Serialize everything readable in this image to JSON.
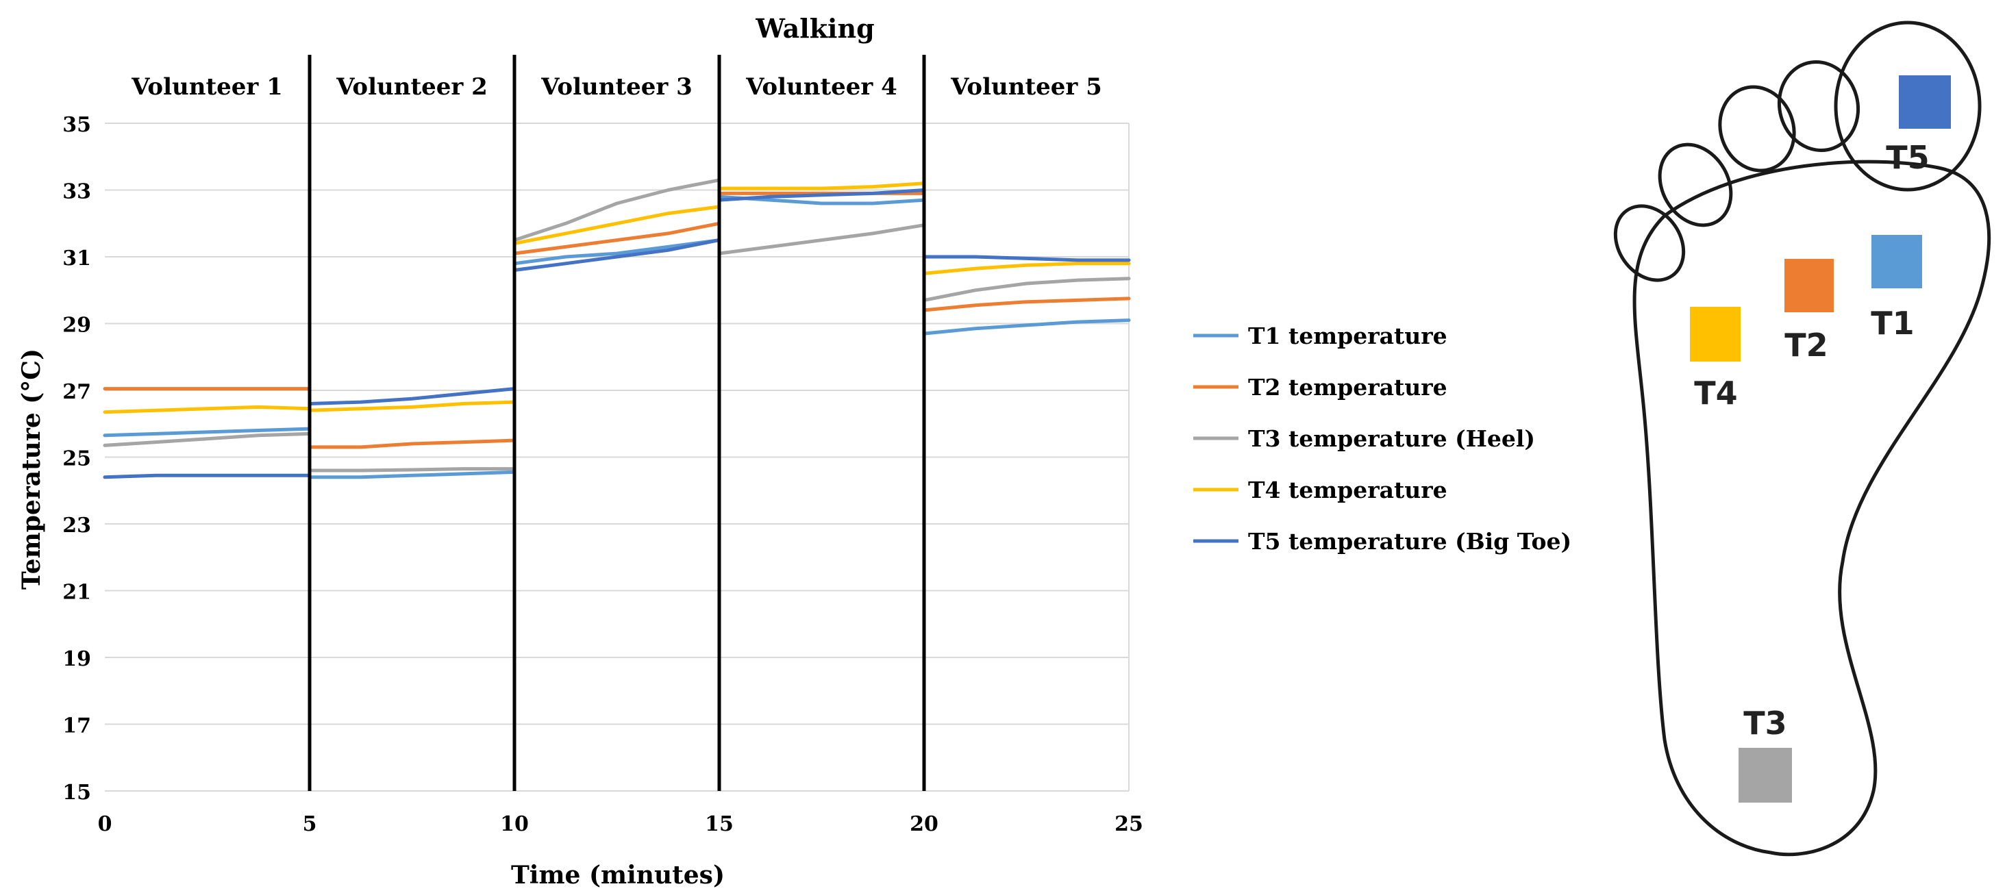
{
  "chart_data": {
    "type": "line",
    "title": "Walking",
    "xlabel": "Time (minutes)",
    "ylabel": "Temperature (°C)",
    "xlim": [
      0,
      25
    ],
    "ylim": [
      15,
      35
    ],
    "x_ticks": [
      "0",
      "5",
      "10",
      "15",
      "20",
      "25"
    ],
    "y_ticks": [
      "15",
      "17",
      "19",
      "21",
      "23",
      "25",
      "27",
      "29",
      "31",
      "33",
      "35"
    ],
    "grid": "horizontal",
    "legend_position": "right",
    "segments": [
      {
        "label": "Volunteer 1",
        "x_start": 0,
        "x_end": 5
      },
      {
        "label": "Volunteer 2",
        "x_start": 5,
        "x_end": 10
      },
      {
        "label": "Volunteer 3",
        "x_start": 10,
        "x_end": 15
      },
      {
        "label": "Volunteer 4",
        "x_start": 15,
        "x_end": 20
      },
      {
        "label": "Volunteer 5",
        "x_start": 20,
        "x_end": 25
      }
    ],
    "separators_x": [
      5,
      10,
      15,
      20
    ],
    "series": [
      {
        "name": "T1 temperature",
        "color": "#5B9BD5",
        "segments": [
          {
            "x": [
              0,
              1.25,
              2.5,
              3.75,
              5
            ],
            "y": [
              25.65,
              25.7,
              25.75,
              25.8,
              25.85
            ]
          },
          {
            "x": [
              5,
              6.25,
              7.5,
              8.75,
              10
            ],
            "y": [
              24.4,
              24.4,
              24.45,
              24.5,
              24.55
            ]
          },
          {
            "x": [
              10,
              11.25,
              12.5,
              13.75,
              15
            ],
            "y": [
              30.8,
              31.0,
              31.1,
              31.3,
              31.5
            ]
          },
          {
            "x": [
              15,
              16.25,
              17.5,
              18.75,
              20
            ],
            "y": [
              32.8,
              32.7,
              32.6,
              32.6,
              32.7
            ]
          },
          {
            "x": [
              20,
              21.25,
              22.5,
              23.75,
              25
            ],
            "y": [
              28.7,
              28.85,
              28.95,
              29.05,
              29.1
            ]
          }
        ]
      },
      {
        "name": "T2 temperature",
        "color": "#ED7D31",
        "segments": [
          {
            "x": [
              0,
              1.25,
              2.5,
              3.75,
              5
            ],
            "y": [
              27.05,
              27.05,
              27.05,
              27.05,
              27.05
            ]
          },
          {
            "x": [
              5,
              6.25,
              7.5,
              8.75,
              10
            ],
            "y": [
              25.3,
              25.3,
              25.4,
              25.45,
              25.5
            ]
          },
          {
            "x": [
              10,
              11.25,
              12.5,
              13.75,
              15
            ],
            "y": [
              31.1,
              31.3,
              31.5,
              31.7,
              32.0
            ]
          },
          {
            "x": [
              15,
              16.25,
              17.5,
              18.75,
              20
            ],
            "y": [
              32.9,
              32.9,
              32.9,
              32.9,
              32.9
            ]
          },
          {
            "x": [
              20,
              21.25,
              22.5,
              23.75,
              25
            ],
            "y": [
              29.4,
              29.55,
              29.65,
              29.7,
              29.75
            ]
          }
        ]
      },
      {
        "name": "T3 temperature (Heel)",
        "color": "#A5A5A5",
        "segments": [
          {
            "x": [
              0,
              1.25,
              2.5,
              3.75,
              5
            ],
            "y": [
              25.35,
              25.45,
              25.55,
              25.65,
              25.7
            ]
          },
          {
            "x": [
              5,
              6.25,
              7.5,
              8.75,
              10
            ],
            "y": [
              24.6,
              24.6,
              24.62,
              24.65,
              24.65
            ]
          },
          {
            "x": [
              10,
              11.25,
              12.5,
              13.75,
              15
            ],
            "y": [
              31.5,
              32.0,
              32.6,
              33.0,
              33.3
            ]
          },
          {
            "x": [
              15,
              16.25,
              17.5,
              18.75,
              20
            ],
            "y": [
              31.1,
              31.3,
              31.5,
              31.7,
              31.95
            ]
          },
          {
            "x": [
              20,
              21.25,
              22.5,
              23.75,
              25
            ],
            "y": [
              29.7,
              30.0,
              30.2,
              30.3,
              30.35
            ]
          }
        ]
      },
      {
        "name": "T4 temperature",
        "color": "#FFC000",
        "segments": [
          {
            "x": [
              0,
              1.25,
              2.5,
              3.75,
              5
            ],
            "y": [
              26.35,
              26.4,
              26.45,
              26.5,
              26.45
            ]
          },
          {
            "x": [
              5,
              6.25,
              7.5,
              8.75,
              10
            ],
            "y": [
              26.4,
              26.45,
              26.5,
              26.6,
              26.65
            ]
          },
          {
            "x": [
              10,
              11.25,
              12.5,
              13.75,
              15
            ],
            "y": [
              31.4,
              31.7,
              32.0,
              32.3,
              32.5
            ]
          },
          {
            "x": [
              15,
              16.25,
              17.5,
              18.75,
              20
            ],
            "y": [
              33.05,
              33.05,
              33.05,
              33.1,
              33.2
            ]
          },
          {
            "x": [
              20,
              21.25,
              22.5,
              23.75,
              25
            ],
            "y": [
              30.5,
              30.65,
              30.75,
              30.8,
              30.8
            ]
          }
        ]
      },
      {
        "name": "T5 temperature (Big Toe)",
        "color": "#4472C4",
        "segments": [
          {
            "x": [
              0,
              1.25,
              2.5,
              3.75,
              5
            ],
            "y": [
              24.4,
              24.45,
              24.45,
              24.45,
              24.45
            ]
          },
          {
            "x": [
              5,
              6.25,
              7.5,
              8.75,
              10
            ],
            "y": [
              26.6,
              26.65,
              26.75,
              26.9,
              27.05
            ]
          },
          {
            "x": [
              10,
              11.25,
              12.5,
              13.75,
              15
            ],
            "y": [
              30.6,
              30.8,
              31.0,
              31.2,
              31.5
            ]
          },
          {
            "x": [
              15,
              16.25,
              17.5,
              18.75,
              20
            ],
            "y": [
              32.7,
              32.8,
              32.85,
              32.9,
              33.0
            ]
          },
          {
            "x": [
              20,
              21.25,
              22.5,
              23.75,
              25
            ],
            "y": [
              31.0,
              31.0,
              30.95,
              30.9,
              30.9
            ]
          }
        ]
      }
    ]
  },
  "foot_diagram": {
    "sensors": [
      {
        "label": "T1",
        "color": "#5B9BD5"
      },
      {
        "label": "T2",
        "color": "#ED7D31"
      },
      {
        "label": "T3",
        "color": "#A5A5A5"
      },
      {
        "label": "T4",
        "color": "#FFC000"
      },
      {
        "label": "T5",
        "color": "#4472C4"
      }
    ]
  }
}
